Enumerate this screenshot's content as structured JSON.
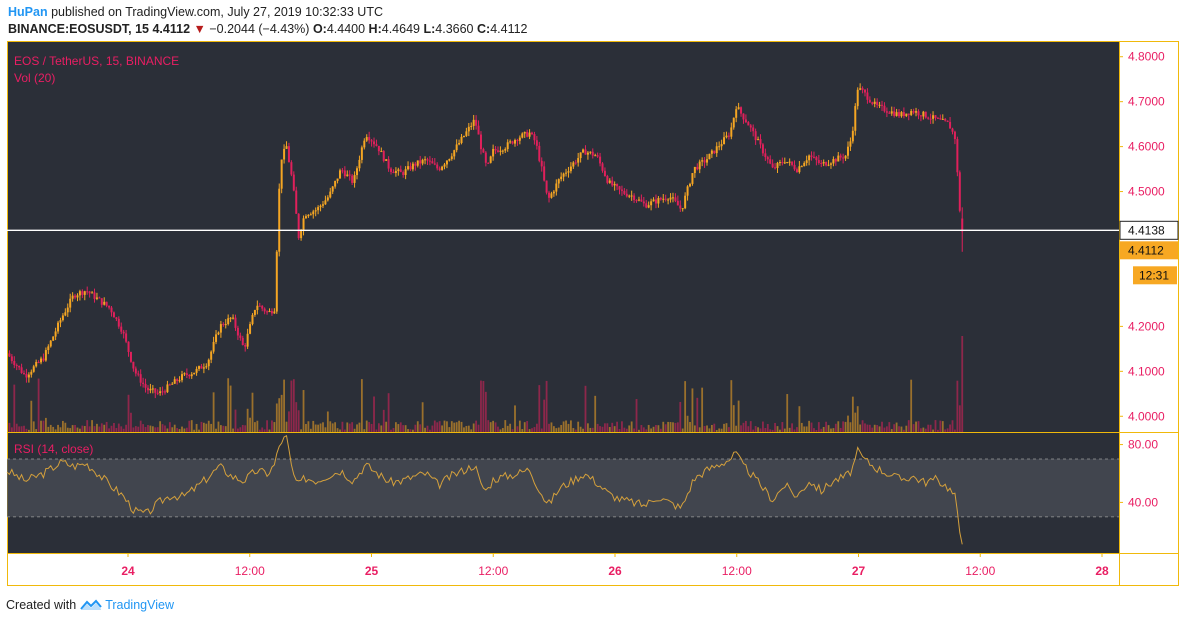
{
  "header": {
    "user": "HuPan",
    "published_text": "published on TradingView.com, July 27, 2019 10:32:33 UTC",
    "symbol": "BINANCE:EOSUSDT, 15",
    "last": "4.4112",
    "change_arrow": "▼",
    "change": "−0.2044 (−4.43%)",
    "ohlc": {
      "o_label": "O:",
      "o": "4.4400",
      "h_label": "H:",
      "h": "4.4649",
      "l_label": "L:",
      "l": "4.3660",
      "c_label": "C:",
      "c": "4.4112"
    }
  },
  "legend": {
    "main": "EOS / TetherUS, 15, BINANCE",
    "vol": "Vol (20)",
    "rsi": "RSI (14, close)"
  },
  "footer": {
    "created_with": "Created with",
    "brand": "TradingView"
  },
  "colors": {
    "background": "#2b2f38",
    "frame": "#f0b90b",
    "up": "#f5a623",
    "down": "#e0205b",
    "text_axis": "#e91e63",
    "rsi_line": "#d4a03c",
    "rsi_band": "#4a4e55",
    "price_line": "#ffffff",
    "price_label_bg": "#f7a823"
  },
  "chart_data": {
    "type": "candlestick",
    "symbol": "EOS / TetherUS",
    "interval": "15",
    "exchange": "BINANCE",
    "y_ticks": [
      "4.8000",
      "4.7000",
      "4.6000",
      "4.5000",
      "4.2000",
      "4.1000",
      "4.0000"
    ],
    "y_tick_values": [
      4.8,
      4.7,
      4.6,
      4.5,
      4.2,
      4.1,
      4.0
    ],
    "ylim": [
      3.965,
      4.835
    ],
    "x_ticks": [
      "24",
      "12:00",
      "25",
      "12:00",
      "26",
      "12:00",
      "27",
      "12:00",
      "28"
    ],
    "x_tick_kind": [
      "day",
      "time",
      "day",
      "time",
      "day",
      "time",
      "day",
      "time",
      "day"
    ],
    "horizontal_line": {
      "value": 4.4138,
      "label": "4.4138"
    },
    "last_price_label": "4.4112",
    "countdown_label": "12:31",
    "close_path_points": [
      [
        0,
        4.14
      ],
      [
        3,
        4.09
      ],
      [
        6,
        4.13
      ],
      [
        9,
        4.22
      ],
      [
        11,
        4.27
      ],
      [
        13,
        4.28
      ],
      [
        15,
        4.26
      ],
      [
        17,
        4.24
      ],
      [
        19,
        4.19
      ],
      [
        21,
        4.1
      ],
      [
        23,
        4.06
      ],
      [
        25,
        4.05
      ],
      [
        27,
        4.07
      ],
      [
        29,
        4.09
      ],
      [
        31,
        4.1
      ],
      [
        33,
        4.12
      ],
      [
        35,
        4.2
      ],
      [
        37,
        4.22
      ],
      [
        39,
        4.15
      ],
      [
        41,
        4.25
      ],
      [
        43,
        4.23
      ],
      [
        44,
        4.24
      ],
      [
        45,
        4.57
      ],
      [
        46,
        4.6
      ],
      [
        47,
        4.52
      ],
      [
        48,
        4.4
      ],
      [
        49,
        4.45
      ],
      [
        51,
        4.46
      ],
      [
        53,
        4.49
      ],
      [
        55,
        4.55
      ],
      [
        57,
        4.52
      ],
      [
        59,
        4.63
      ],
      [
        61,
        4.6
      ],
      [
        63,
        4.55
      ],
      [
        65,
        4.54
      ],
      [
        67,
        4.56
      ],
      [
        69,
        4.57
      ],
      [
        71,
        4.55
      ],
      [
        73,
        4.58
      ],
      [
        75,
        4.62
      ],
      [
        77,
        4.66
      ],
      [
        78,
        4.6
      ],
      [
        79,
        4.55
      ],
      [
        80,
        4.59
      ],
      [
        82,
        4.6
      ],
      [
        84,
        4.62
      ],
      [
        86,
        4.63
      ],
      [
        87,
        4.61
      ],
      [
        88,
        4.55
      ],
      [
        89,
        4.48
      ],
      [
        91,
        4.53
      ],
      [
        93,
        4.56
      ],
      [
        95,
        4.59
      ],
      [
        97,
        4.58
      ],
      [
        99,
        4.52
      ],
      [
        101,
        4.5
      ],
      [
        103,
        4.49
      ],
      [
        105,
        4.47
      ],
      [
        107,
        4.48
      ],
      [
        109,
        4.49
      ],
      [
        111,
        4.46
      ],
      [
        113,
        4.55
      ],
      [
        115,
        4.57
      ],
      [
        117,
        4.6
      ],
      [
        119,
        4.63
      ],
      [
        120,
        4.69
      ],
      [
        121,
        4.67
      ],
      [
        122,
        4.65
      ],
      [
        124,
        4.6
      ],
      [
        126,
        4.55
      ],
      [
        128,
        4.57
      ],
      [
        130,
        4.55
      ],
      [
        132,
        4.58
      ],
      [
        134,
        4.56
      ],
      [
        136,
        4.57
      ],
      [
        138,
        4.58
      ],
      [
        139,
        4.62
      ],
      [
        140,
        4.73
      ],
      [
        141,
        4.72
      ],
      [
        143,
        4.69
      ],
      [
        145,
        4.68
      ],
      [
        147,
        4.67
      ],
      [
        149,
        4.68
      ],
      [
        151,
        4.67
      ],
      [
        153,
        4.66
      ],
      [
        155,
        4.65
      ],
      [
        156,
        4.62
      ],
      [
        157,
        4.42
      ],
      [
        157.5,
        4.4112
      ]
    ],
    "x_span": [
      0,
      183
    ],
    "rsi": {
      "label": "RSI (14, close)",
      "y_ticks": [
        "80.00",
        "40.00"
      ],
      "y_tick_values": [
        80,
        40
      ],
      "ylim": [
        5,
        88
      ],
      "band": [
        30,
        70
      ],
      "points": [
        [
          0,
          62
        ],
        [
          3,
          55
        ],
        [
          6,
          60
        ],
        [
          9,
          68
        ],
        [
          11,
          65
        ],
        [
          13,
          67
        ],
        [
          15,
          60
        ],
        [
          17,
          52
        ],
        [
          19,
          45
        ],
        [
          21,
          34
        ],
        [
          23,
          32
        ],
        [
          25,
          40
        ],
        [
          27,
          45
        ],
        [
          29,
          44
        ],
        [
          31,
          50
        ],
        [
          33,
          57
        ],
        [
          35,
          65
        ],
        [
          37,
          58
        ],
        [
          39,
          55
        ],
        [
          41,
          62
        ],
        [
          43,
          60
        ],
        [
          44,
          66
        ],
        [
          45,
          82
        ],
        [
          46,
          85
        ],
        [
          47,
          60
        ],
        [
          48,
          52
        ],
        [
          49,
          57
        ],
        [
          51,
          55
        ],
        [
          53,
          59
        ],
        [
          55,
          62
        ],
        [
          57,
          55
        ],
        [
          59,
          66
        ],
        [
          61,
          60
        ],
        [
          63,
          54
        ],
        [
          65,
          55
        ],
        [
          67,
          58
        ],
        [
          69,
          60
        ],
        [
          71,
          52
        ],
        [
          73,
          58
        ],
        [
          75,
          62
        ],
        [
          77,
          66
        ],
        [
          78,
          52
        ],
        [
          79,
          48
        ],
        [
          80,
          56
        ],
        [
          82,
          58
        ],
        [
          84,
          60
        ],
        [
          86,
          63
        ],
        [
          87,
          54
        ],
        [
          88,
          46
        ],
        [
          89,
          38
        ],
        [
          91,
          50
        ],
        [
          93,
          55
        ],
        [
          95,
          60
        ],
        [
          97,
          54
        ],
        [
          99,
          46
        ],
        [
          101,
          42
        ],
        [
          103,
          40
        ],
        [
          105,
          38
        ],
        [
          107,
          44
        ],
        [
          109,
          40
        ],
        [
          111,
          36
        ],
        [
          113,
          56
        ],
        [
          115,
          62
        ],
        [
          117,
          66
        ],
        [
          119,
          70
        ],
        [
          120,
          74
        ],
        [
          121,
          66
        ],
        [
          122,
          62
        ],
        [
          124,
          52
        ],
        [
          126,
          42
        ],
        [
          128,
          52
        ],
        [
          130,
          44
        ],
        [
          132,
          55
        ],
        [
          134,
          48
        ],
        [
          136,
          55
        ],
        [
          138,
          58
        ],
        [
          139,
          62
        ],
        [
          140,
          75
        ],
        [
          141,
          70
        ],
        [
          143,
          64
        ],
        [
          145,
          60
        ],
        [
          147,
          56
        ],
        [
          149,
          58
        ],
        [
          151,
          54
        ],
        [
          153,
          56
        ],
        [
          155,
          50
        ],
        [
          156,
          44
        ],
        [
          157,
          14
        ]
      ]
    }
  }
}
